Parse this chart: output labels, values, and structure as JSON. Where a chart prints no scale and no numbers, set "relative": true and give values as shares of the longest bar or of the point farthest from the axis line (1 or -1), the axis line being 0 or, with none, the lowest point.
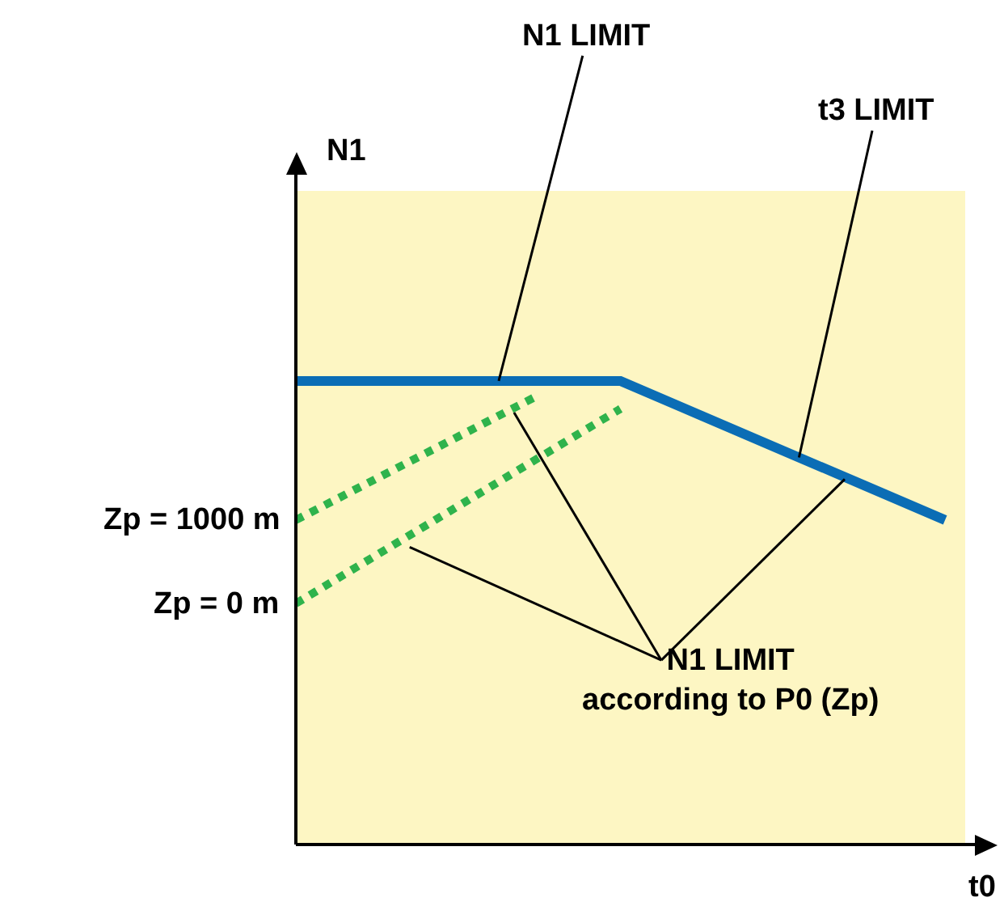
{
  "chart_data": {
    "type": "line",
    "relative": true,
    "grid": false,
    "categories": [
      null,
      null,
      null,
      null,
      null,
      null,
      null,
      null,
      null
    ],
    "series": [
      {
        "name": null,
        "color": "#0b6db5",
        "line_style": "solid",
        "values": [
          1,
          1,
          1,
          1,
          1,
          0.925,
          0.85,
          0.775,
          0.7
        ]
      },
      {
        "name": "Zp = 1000 m",
        "color": "#2fb34c",
        "line_style": "dotted",
        "values": [
          0.7,
          0.79,
          0.88,
          0.97,
          null,
          null,
          null,
          null,
          null
        ]
      },
      {
        "name": "Zp = 0 m",
        "color": "#2fb34c",
        "line_style": "dotted",
        "values": [
          0.52,
          0.625,
          0.73,
          0.835,
          0.94,
          null,
          null,
          null,
          null
        ]
      }
    ],
    "annotations": [
      "N1 LIMIT",
      "t3 LIMIT",
      "N1 LIMIT\naccording to P0 (Zp)",
      "N1",
      "t0"
    ]
  }
}
